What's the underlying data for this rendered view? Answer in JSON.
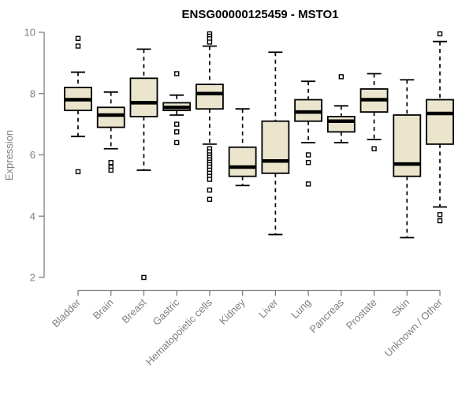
{
  "page": {
    "background": "#ffffff"
  },
  "chart_data": {
    "type": "boxplot",
    "title": "ENSG00000125459 - MSTO1",
    "xlabel": "",
    "ylabel": "Expression",
    "ylim": [
      2,
      10
    ],
    "yticks": [
      2,
      4,
      6,
      8,
      10
    ],
    "grid": false,
    "legend": false,
    "colors": {
      "box_fill": "#EAE5CC",
      "box_stroke": "#000000",
      "median": "#000000",
      "whisker": "#000000",
      "outlier_stroke": "#000000",
      "outlier_fill": "#ffffff",
      "axis": "#7f7f7f",
      "title": "#000000"
    },
    "categories": [
      "Bladder",
      "Brain",
      "Breast",
      "Gastric",
      "Hematopoietic cells",
      "Kidney",
      "Liver",
      "Lung",
      "Pancreas",
      "Prostate",
      "Skin",
      "Unknown / Other"
    ],
    "boxes": [
      {
        "category": "Bladder",
        "whisker_low": 6.6,
        "q1": 7.45,
        "median": 7.8,
        "q3": 8.2,
        "whisker_high": 8.7,
        "outliers": [
          9.8,
          9.55,
          5.45
        ]
      },
      {
        "category": "Brain",
        "whisker_low": 6.2,
        "q1": 6.9,
        "median": 7.3,
        "q3": 7.55,
        "whisker_high": 8.05,
        "outliers": [
          5.75,
          5.6,
          5.5
        ]
      },
      {
        "category": "Breast",
        "whisker_low": 5.5,
        "q1": 7.25,
        "median": 7.7,
        "q3": 8.5,
        "whisker_high": 9.45,
        "outliers": [
          2.0
        ]
      },
      {
        "category": "Gastric",
        "whisker_low": 7.3,
        "q1": 7.45,
        "median": 7.55,
        "q3": 7.7,
        "whisker_high": 7.95,
        "outliers": [
          8.65,
          7.0,
          6.75,
          6.4
        ]
      },
      {
        "category": "Hematopoietic cells",
        "whisker_low": 6.35,
        "q1": 7.5,
        "median": 8.0,
        "q3": 8.3,
        "whisker_high": 9.55,
        "outliers": [
          9.95,
          9.87,
          9.79,
          9.68,
          6.2,
          6.1,
          6.0,
          5.92,
          5.84,
          5.76,
          5.68,
          5.6,
          5.5,
          5.4,
          5.3,
          5.2,
          4.85,
          4.55
        ]
      },
      {
        "category": "Kidney",
        "whisker_low": 5.0,
        "q1": 5.3,
        "median": 5.6,
        "q3": 6.25,
        "whisker_high": 7.5,
        "outliers": []
      },
      {
        "category": "Liver",
        "whisker_low": 3.4,
        "q1": 5.4,
        "median": 5.8,
        "q3": 7.1,
        "whisker_high": 9.35,
        "outliers": []
      },
      {
        "category": "Lung",
        "whisker_low": 6.4,
        "q1": 7.1,
        "median": 7.4,
        "q3": 7.8,
        "whisker_high": 8.4,
        "outliers": [
          6.0,
          5.75,
          5.05
        ]
      },
      {
        "category": "Pancreas",
        "whisker_low": 6.4,
        "q1": 6.75,
        "median": 7.1,
        "q3": 7.25,
        "whisker_high": 7.6,
        "outliers": [
          8.55
        ]
      },
      {
        "category": "Prostate",
        "whisker_low": 6.5,
        "q1": 7.4,
        "median": 7.8,
        "q3": 8.15,
        "whisker_high": 8.65,
        "outliers": [
          6.2
        ]
      },
      {
        "category": "Skin",
        "whisker_low": 3.3,
        "q1": 5.3,
        "median": 5.7,
        "q3": 7.3,
        "whisker_high": 8.45,
        "outliers": []
      },
      {
        "category": "Unknown / Other",
        "whisker_low": 4.3,
        "q1": 6.35,
        "median": 7.35,
        "q3": 7.8,
        "whisker_high": 9.7,
        "outliers": [
          9.95,
          4.05,
          3.85
        ]
      }
    ]
  }
}
